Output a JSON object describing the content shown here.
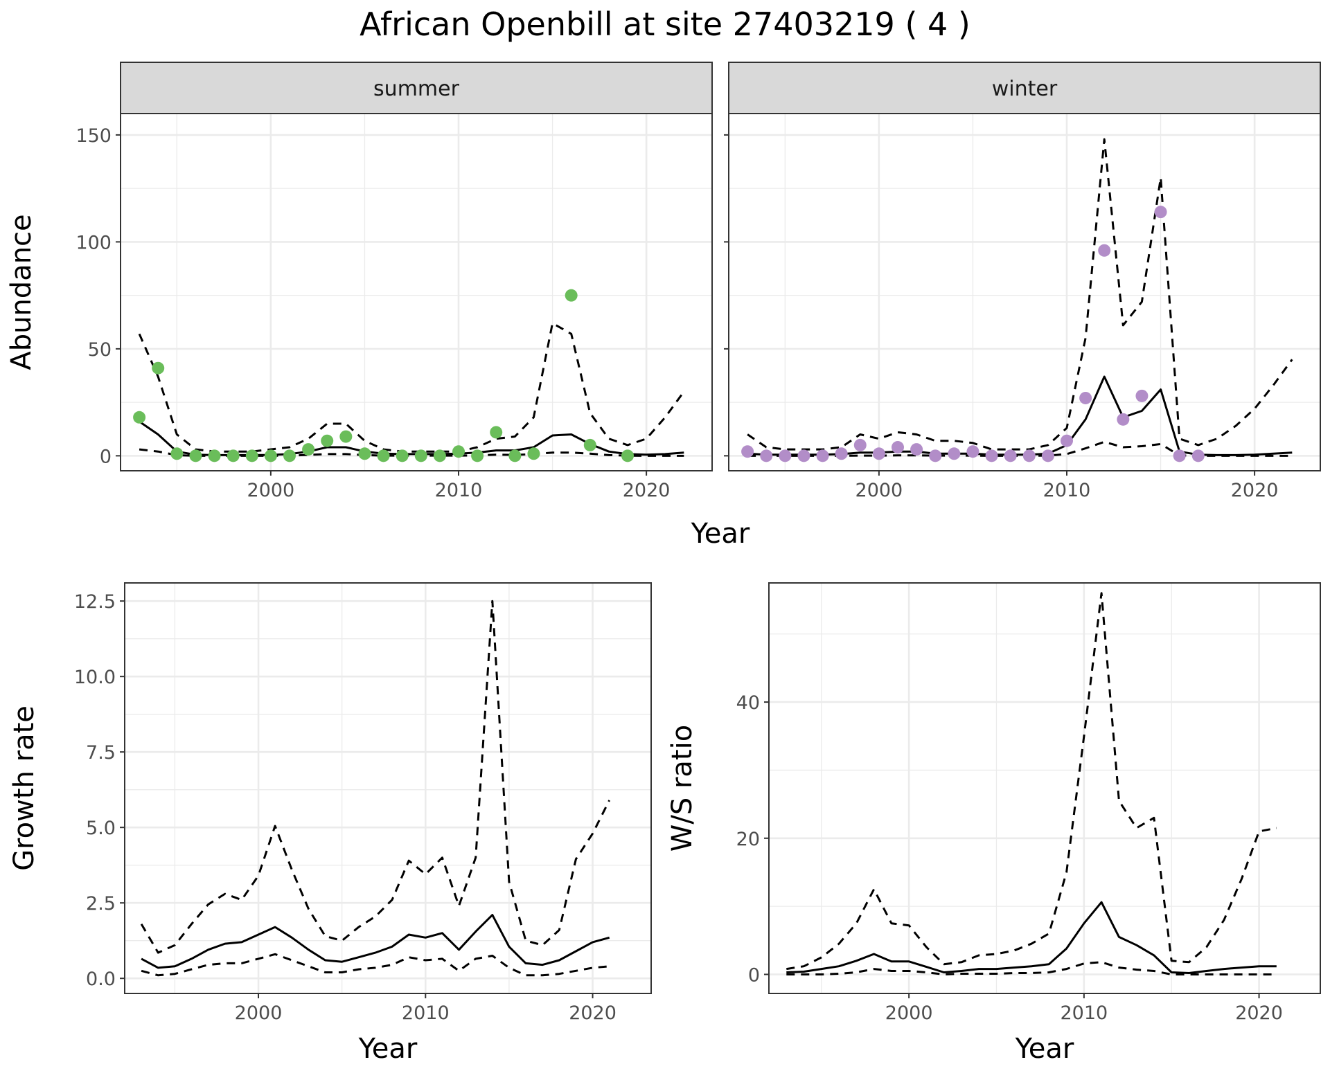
{
  "title": "African Openbill at site 27403219 ( 4 )",
  "colors": {
    "summer_points": "#6ABD5A",
    "winter_points": "#B28DC8",
    "line": "#000000",
    "strip_bg": "#D9D9D9",
    "grid": "#EBEBEB"
  },
  "chart_data": [
    {
      "type": "line",
      "facet": "summer",
      "ylabel": "Abundance",
      "xlim": [
        1992,
        2023.5
      ],
      "ylim": [
        -7,
        160
      ],
      "xticks": [
        2000,
        2010,
        2020
      ],
      "yticks": [
        0,
        50,
        100,
        150
      ],
      "points": {
        "x": [
          1993,
          1994,
          1995,
          1996,
          1997,
          1998,
          1999,
          2000,
          2001,
          2002,
          2003,
          2004,
          2005,
          2006,
          2007,
          2008,
          2009,
          2010,
          2011,
          2012,
          2013,
          2014,
          2016,
          2017,
          2019
        ],
        "y": [
          18,
          41,
          1,
          0,
          0,
          0,
          0,
          0,
          0,
          3,
          7,
          9,
          1,
          0,
          0,
          0,
          0,
          2,
          0,
          11,
          0,
          1,
          75,
          5,
          0
        ]
      },
      "series": [
        {
          "style": "solid",
          "x": [
            1993,
            1994,
            1995,
            1996,
            1997,
            1998,
            1999,
            2000,
            2001,
            2002,
            2003,
            2004,
            2005,
            2006,
            2007,
            2008,
            2009,
            2010,
            2011,
            2012,
            2013,
            2014,
            2015,
            2016,
            2017,
            2018,
            2019,
            2020,
            2021,
            2022
          ],
          "y": [
            16,
            10,
            2,
            0.5,
            0.3,
            0.3,
            0.3,
            0.4,
            0.8,
            2,
            4,
            4,
            2,
            1,
            0.8,
            0.8,
            0.8,
            1,
            1.5,
            2.5,
            2.5,
            4,
            9.5,
            10,
            5.5,
            2,
            0.8,
            0.5,
            0.8,
            1.5
          ]
        },
        {
          "style": "dashed",
          "x": [
            1993,
            1994,
            1995,
            1996,
            1997,
            1998,
            1999,
            2000,
            2001,
            2002,
            2003,
            2004,
            2005,
            2006,
            2007,
            2008,
            2009,
            2010,
            2011,
            2012,
            2013,
            2014,
            2015,
            2016,
            2017,
            2018,
            2019,
            2020,
            2021,
            2022
          ],
          "y": [
            57,
            37,
            10,
            3,
            2,
            2,
            2,
            3,
            4,
            8,
            15,
            15,
            7,
            3,
            2,
            2,
            2,
            2,
            4,
            8,
            9,
            18,
            62,
            57,
            20,
            8,
            5,
            8,
            18,
            30
          ]
        },
        {
          "style": "dashed",
          "x": [
            1993,
            1994,
            1995,
            1996,
            1997,
            1998,
            1999,
            2000,
            2001,
            2002,
            2003,
            2004,
            2005,
            2006,
            2007,
            2008,
            2009,
            2010,
            2011,
            2012,
            2013,
            2014,
            2015,
            2016,
            2017,
            2018,
            2019,
            2020,
            2021,
            2022
          ],
          "y": [
            3,
            2,
            0.3,
            0,
            0,
            0,
            0,
            0,
            0.1,
            0.4,
            0.8,
            0.8,
            0.3,
            0.1,
            0.1,
            0.1,
            0.1,
            0.1,
            0.2,
            0.5,
            0.4,
            0.8,
            1.5,
            1.5,
            1,
            0.3,
            0.1,
            0,
            0,
            0
          ]
        }
      ]
    },
    {
      "type": "line",
      "facet": "winter",
      "xlim": [
        1992,
        2023.5
      ],
      "ylim": [
        -7,
        160
      ],
      "xticks": [
        2000,
        2010,
        2020
      ],
      "points": {
        "x": [
          1993,
          1994,
          1995,
          1996,
          1997,
          1998,
          1999,
          2000,
          2001,
          2002,
          2003,
          2004,
          2005,
          2006,
          2007,
          2008,
          2009,
          2010,
          2011,
          2012,
          2013,
          2014,
          2015,
          2016,
          2017
        ],
        "y": [
          2,
          0,
          0,
          0,
          0,
          1,
          5,
          1,
          4,
          3,
          0,
          1,
          2,
          0,
          0,
          0,
          0,
          7,
          27,
          96,
          17,
          28,
          114,
          0,
          0
        ]
      },
      "series": [
        {
          "style": "solid",
          "x": [
            1993,
            1994,
            1995,
            1996,
            1997,
            1998,
            1999,
            2000,
            2001,
            2002,
            2003,
            2004,
            2005,
            2006,
            2007,
            2008,
            2009,
            2010,
            2011,
            2012,
            2013,
            2014,
            2015,
            2016,
            2017,
            2018,
            2019,
            2020,
            2021,
            2022
          ],
          "y": [
            1,
            0.5,
            0.5,
            0.5,
            0.5,
            0.8,
            1.5,
            1.5,
            2,
            2,
            1,
            1,
            1,
            0.5,
            0.5,
            0.5,
            1,
            5,
            17,
            37,
            18,
            21,
            31,
            2,
            0.5,
            0.3,
            0.3,
            0.5,
            1,
            1.5
          ]
        },
        {
          "style": "dashed",
          "x": [
            1993,
            1994,
            1995,
            1996,
            1997,
            1998,
            1999,
            2000,
            2001,
            2002,
            2003,
            2004,
            2005,
            2006,
            2007,
            2008,
            2009,
            2010,
            2011,
            2012,
            2013,
            2014,
            2015,
            2016,
            2017,
            2018,
            2019,
            2020,
            2021,
            2022
          ],
          "y": [
            10,
            4,
            3,
            3,
            3,
            4,
            10,
            8,
            11,
            10,
            7,
            7,
            6,
            3,
            3,
            3,
            5,
            13,
            55,
            148,
            61,
            72,
            130,
            8,
            5,
            8,
            14,
            22,
            33,
            45
          ]
        },
        {
          "style": "dashed",
          "x": [
            1993,
            1994,
            1995,
            1996,
            1997,
            1998,
            1999,
            2000,
            2001,
            2002,
            2003,
            2004,
            2005,
            2006,
            2007,
            2008,
            2009,
            2010,
            2011,
            2012,
            2013,
            2014,
            2015,
            2016,
            2017,
            2018,
            2019,
            2020,
            2021,
            2022
          ],
          "y": [
            0,
            0,
            0,
            0,
            0,
            0,
            0.1,
            0.1,
            0.2,
            0.2,
            0.1,
            0.1,
            0.1,
            0,
            0,
            0,
            0.1,
            0.8,
            3.5,
            6.5,
            4,
            4.5,
            5.5,
            0.2,
            0,
            0,
            0,
            0,
            0,
            0
          ]
        }
      ]
    },
    {
      "type": "line",
      "xlabel": "Year",
      "ylabel": "Growth rate",
      "xlim": [
        1992,
        2023.5
      ],
      "ylim": [
        -0.5,
        13.1
      ],
      "xticks": [
        2000,
        2010,
        2020
      ],
      "yticks": [
        0,
        2.5,
        5,
        7.5,
        10,
        12.5
      ],
      "ytick_labels": [
        "0.0",
        "2.5",
        "5.0",
        "7.5",
        "10.0",
        "12.5"
      ],
      "series": [
        {
          "style": "solid",
          "x": [
            1993,
            1994,
            1995,
            1996,
            1997,
            1998,
            1999,
            2000,
            2001,
            2002,
            2003,
            2004,
            2005,
            2006,
            2007,
            2008,
            2009,
            2010,
            2011,
            2012,
            2013,
            2014,
            2015,
            2016,
            2017,
            2018,
            2019,
            2020,
            2021
          ],
          "y": [
            0.65,
            0.35,
            0.4,
            0.65,
            0.95,
            1.15,
            1.2,
            1.45,
            1.7,
            1.35,
            0.95,
            0.6,
            0.55,
            0.7,
            0.85,
            1.05,
            1.45,
            1.35,
            1.5,
            0.95,
            1.55,
            2.1,
            1.05,
            0.5,
            0.45,
            0.6,
            0.9,
            1.2,
            1.35
          ]
        },
        {
          "style": "dashed",
          "x": [
            1993,
            1994,
            1995,
            1996,
            1997,
            1998,
            1999,
            2000,
            2001,
            2002,
            2003,
            2004,
            2005,
            2006,
            2007,
            2008,
            2009,
            2010,
            2011,
            2012,
            2013,
            2014,
            2015,
            2016,
            2017,
            2018,
            2019,
            2020,
            2021
          ],
          "y": [
            1.8,
            0.85,
            1.1,
            1.8,
            2.45,
            2.8,
            2.6,
            3.4,
            5.05,
            3.6,
            2.3,
            1.4,
            1.25,
            1.7,
            2.05,
            2.6,
            3.9,
            3.45,
            4,
            2.4,
            4,
            12.5,
            3.2,
            1.25,
            1.1,
            1.6,
            3.95,
            4.8,
            5.9
          ]
        },
        {
          "style": "dashed",
          "x": [
            1993,
            1994,
            1995,
            1996,
            1997,
            1998,
            1999,
            2000,
            2001,
            2002,
            2003,
            2004,
            2005,
            2006,
            2007,
            2008,
            2009,
            2010,
            2011,
            2012,
            2013,
            2014,
            2015,
            2016,
            2017,
            2018,
            2019,
            2020,
            2021
          ],
          "y": [
            0.25,
            0.1,
            0.15,
            0.3,
            0.45,
            0.5,
            0.5,
            0.65,
            0.8,
            0.6,
            0.4,
            0.2,
            0.2,
            0.3,
            0.35,
            0.45,
            0.7,
            0.6,
            0.65,
            0.25,
            0.65,
            0.75,
            0.35,
            0.1,
            0.1,
            0.15,
            0.25,
            0.35,
            0.4
          ]
        }
      ]
    },
    {
      "type": "line",
      "xlabel": "Year",
      "ylabel": "W/S ratio",
      "xlim": [
        1992,
        2023.5
      ],
      "ylim": [
        -2.8,
        57.5
      ],
      "xticks": [
        2000,
        2010,
        2020
      ],
      "yticks": [
        0,
        20,
        40
      ],
      "series": [
        {
          "style": "solid",
          "x": [
            1993,
            1994,
            1995,
            1996,
            1997,
            1998,
            1999,
            2000,
            2001,
            2002,
            2003,
            2004,
            2005,
            2006,
            2007,
            2008,
            2009,
            2010,
            2011,
            2012,
            2013,
            2014,
            2015,
            2016,
            2017,
            2018,
            2019,
            2020,
            2021
          ],
          "y": [
            0.3,
            0.4,
            0.8,
            1.2,
            2,
            3,
            1.9,
            1.9,
            1.1,
            0.3,
            0.5,
            0.8,
            0.8,
            1,
            1.2,
            1.5,
            3.8,
            7.5,
            10.6,
            5.5,
            4.3,
            2.8,
            0.3,
            0.2,
            0.5,
            0.8,
            1,
            1.2,
            1.2
          ]
        },
        {
          "style": "dashed",
          "x": [
            1993,
            1994,
            1995,
            1996,
            1997,
            1998,
            1999,
            2000,
            2001,
            2002,
            2003,
            2004,
            2005,
            2006,
            2007,
            2008,
            2009,
            2010,
            2011,
            2012,
            2013,
            2014,
            2015,
            2016,
            2017,
            2018,
            2019,
            2020,
            2021
          ],
          "y": [
            0.8,
            1.2,
            2.5,
            4.5,
            7.5,
            12.5,
            7.5,
            7.2,
            4,
            1.5,
            1.8,
            2.8,
            3,
            3.5,
            4.5,
            6,
            15,
            35,
            56,
            25.5,
            21.5,
            23,
            2,
            1.8,
            4,
            8,
            14,
            21,
            21.5
          ]
        },
        {
          "style": "dashed",
          "x": [
            1993,
            1994,
            1995,
            1996,
            1997,
            1998,
            1999,
            2000,
            2001,
            2002,
            2003,
            2004,
            2005,
            2006,
            2007,
            2008,
            2009,
            2010,
            2011,
            2012,
            2013,
            2014,
            2015,
            2016,
            2017,
            2018,
            2019,
            2020,
            2021
          ],
          "y": [
            0,
            0,
            0,
            0.1,
            0.3,
            0.8,
            0.5,
            0.5,
            0.3,
            0,
            0.1,
            0.1,
            0.1,
            0.2,
            0.2,
            0.3,
            0.8,
            1.6,
            1.8,
            1,
            0.7,
            0.5,
            0,
            0,
            0,
            0,
            0,
            0,
            0
          ]
        }
      ]
    }
  ]
}
